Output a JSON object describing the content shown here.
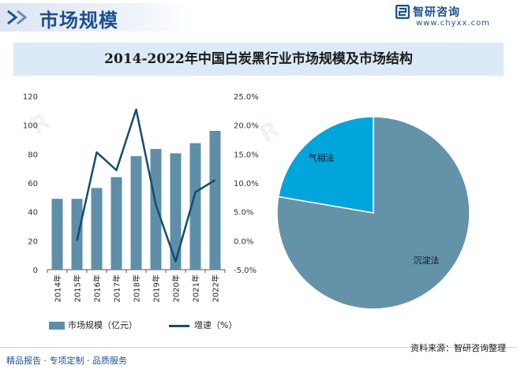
{
  "header": {
    "title": "市场规模",
    "brand_name": "智研咨询",
    "brand_url": "www.chyxx.com"
  },
  "chart_title": "2014-2022年中国白炭黑行业市场规模及市场结构",
  "footer": {
    "left": "精品报告 · 专项定制 · 品质服务",
    "right": "资料来源：智研咨询整理"
  },
  "colors": {
    "bar": "#5f8fa8",
    "line": "#134d6f",
    "pie_main": "#6493a9",
    "pie_minor": "#00a5dc",
    "brand": "#1d4f8f"
  },
  "icons": [
    "chevron-right-icon",
    "brand-logo-icon"
  ],
  "chart_data": [
    {
      "type": "bar",
      "categories": [
        "2014年",
        "2015年",
        "2016年",
        "2017年",
        "2018年",
        "2019年",
        "2020年",
        "2021年",
        "2022年"
      ],
      "series": [
        {
          "name": "市场规模（亿元）",
          "type": "bar",
          "axis": "left",
          "values": [
            49,
            49,
            56.5,
            64,
            78.5,
            83.5,
            80.5,
            87.5,
            96
          ]
        },
        {
          "name": "增速（%）",
          "type": "line",
          "axis": "right",
          "values": [
            null,
            0,
            15.3,
            12.2,
            22.7,
            6.2,
            -3.6,
            8.4,
            10.5
          ]
        }
      ],
      "y_left": {
        "min": 0,
        "max": 120,
        "ticks": [
          "0",
          "20",
          "40",
          "60",
          "80",
          "100",
          "120"
        ]
      },
      "y_right": {
        "min": -5,
        "max": 25,
        "ticks": [
          "-5.0%",
          "0.0%",
          "5.0%",
          "10.0%",
          "15.0%",
          "20.0%",
          "25.0%"
        ]
      },
      "legend_position": "bottom-left",
      "grid": false
    },
    {
      "type": "pie",
      "labels": [
        "沉淀法",
        "气相法"
      ],
      "values": [
        77.7,
        22.3
      ]
    }
  ]
}
